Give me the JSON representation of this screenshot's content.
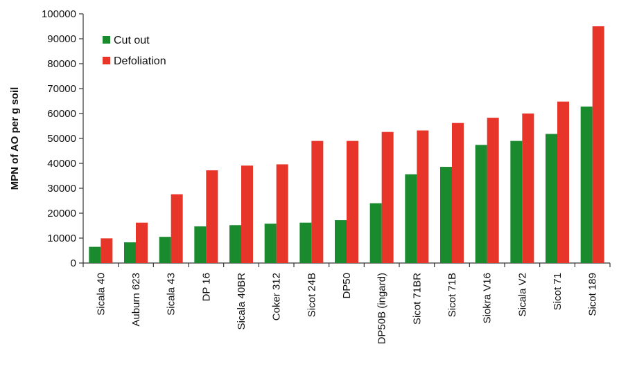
{
  "chart_data": {
    "type": "bar",
    "title": "",
    "xlabel": "",
    "ylabel": "MPN of AO per g soil",
    "ylim": [
      0,
      100000
    ],
    "yticks": [
      "0",
      "10000",
      "20000",
      "30000",
      "40000",
      "50000",
      "60000",
      "70000",
      "80000",
      "90000",
      "100000"
    ],
    "categories": [
      "Sicala 40",
      "Auburn 623",
      "Sicala 43",
      "DP 16",
      "Sicala 40BR",
      "Coker 312",
      "Sicot 24B",
      "DP50",
      "DP50B (ingard)",
      "Sicot 71BR",
      "Sicot 71B",
      "Siokra V16",
      "Sicala V2",
      "Sicot 71",
      "Sicot 189"
    ],
    "series": [
      {
        "name": "Cut out",
        "color": "#1a8a2e",
        "values": [
          6500,
          8300,
          10500,
          14700,
          15200,
          15800,
          16200,
          17200,
          24000,
          35600,
          38600,
          47400,
          49000,
          51800,
          62800
        ]
      },
      {
        "name": "Defoliation",
        "color": "#e8352a",
        "values": [
          9900,
          16200,
          27600,
          37200,
          39100,
          39600,
          49000,
          49000,
          52600,
          53200,
          56200,
          58300,
          60000,
          64800,
          95000
        ]
      }
    ],
    "grid": false,
    "legend_position": "top-left"
  }
}
